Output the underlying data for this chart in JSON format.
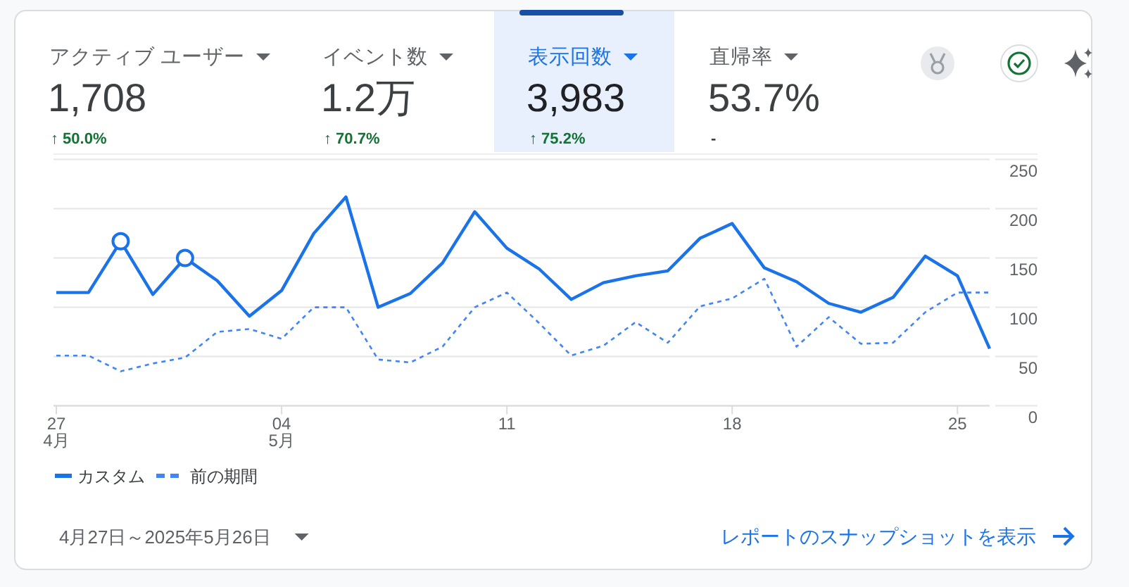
{
  "chart_data": {
    "type": "line",
    "x": [
      "2025-04-27",
      "2025-04-28",
      "2025-04-29",
      "2025-04-30",
      "2025-05-01",
      "2025-05-02",
      "2025-05-03",
      "2025-05-04",
      "2025-05-05",
      "2025-05-06",
      "2025-05-07",
      "2025-05-08",
      "2025-05-09",
      "2025-05-10",
      "2025-05-11",
      "2025-05-12",
      "2025-05-13",
      "2025-05-14",
      "2025-05-15",
      "2025-05-16",
      "2025-05-17",
      "2025-05-18",
      "2025-05-19",
      "2025-05-20",
      "2025-05-21",
      "2025-05-22",
      "2025-05-23",
      "2025-05-24",
      "2025-05-25",
      "2025-05-26"
    ],
    "series": [
      {
        "name": "カスタム",
        "color": "#1a73e8",
        "line_style": "solid",
        "values": [
          115,
          115,
          167,
          113,
          150,
          127,
          91,
          117,
          175,
          212,
          100,
          114,
          145,
          197,
          160,
          139,
          108,
          125,
          132,
          137,
          170,
          185,
          140,
          126,
          104,
          95,
          110,
          152,
          132,
          58
        ]
      },
      {
        "name": "前の期間",
        "color": "#4285f4",
        "line_style": "dashed",
        "values": [
          51,
          51,
          35,
          43,
          49,
          75,
          78,
          68,
          100,
          100,
          47,
          44,
          60,
          100,
          115,
          84,
          51,
          61,
          85,
          64,
          101,
          109,
          129,
          60,
          90,
          63,
          64,
          95,
          115,
          115
        ]
      },
      {
        "type": "scatter",
        "marker": "circle",
        "color": "#1a73e8",
        "x": [
          "2025-04-29",
          "2025-05-01"
        ],
        "values": [
          167,
          150
        ]
      }
    ],
    "xlim": [
      "2025-04-27",
      "2025-05-26"
    ],
    "xticks": [
      {
        "value": "2025-04-27",
        "label": "27\n4月"
      },
      {
        "value": "2025-05-04",
        "label": "04\n5月"
      },
      {
        "value": "2025-05-11",
        "label": "11"
      },
      {
        "value": "2025-05-18",
        "label": "18"
      },
      {
        "value": "2025-05-25",
        "label": "25"
      }
    ],
    "ylim": [
      0,
      250
    ],
    "yticks": [
      0,
      50,
      100,
      150,
      200,
      250
    ],
    "grid": "y",
    "legend": "bottom",
    "annotations": [
      "アクティブ ユーザー",
      "1,708",
      "↑ 50.0%",
      "イベント数",
      "1.2万",
      "↑ 70.7%",
      "表示回数",
      "3,983",
      "↑ 75.2%",
      "直帰率",
      "53.7%",
      "-",
      "4月27日～2025年5月26日",
      "レポートのスナップショットを表示"
    ]
  }
}
